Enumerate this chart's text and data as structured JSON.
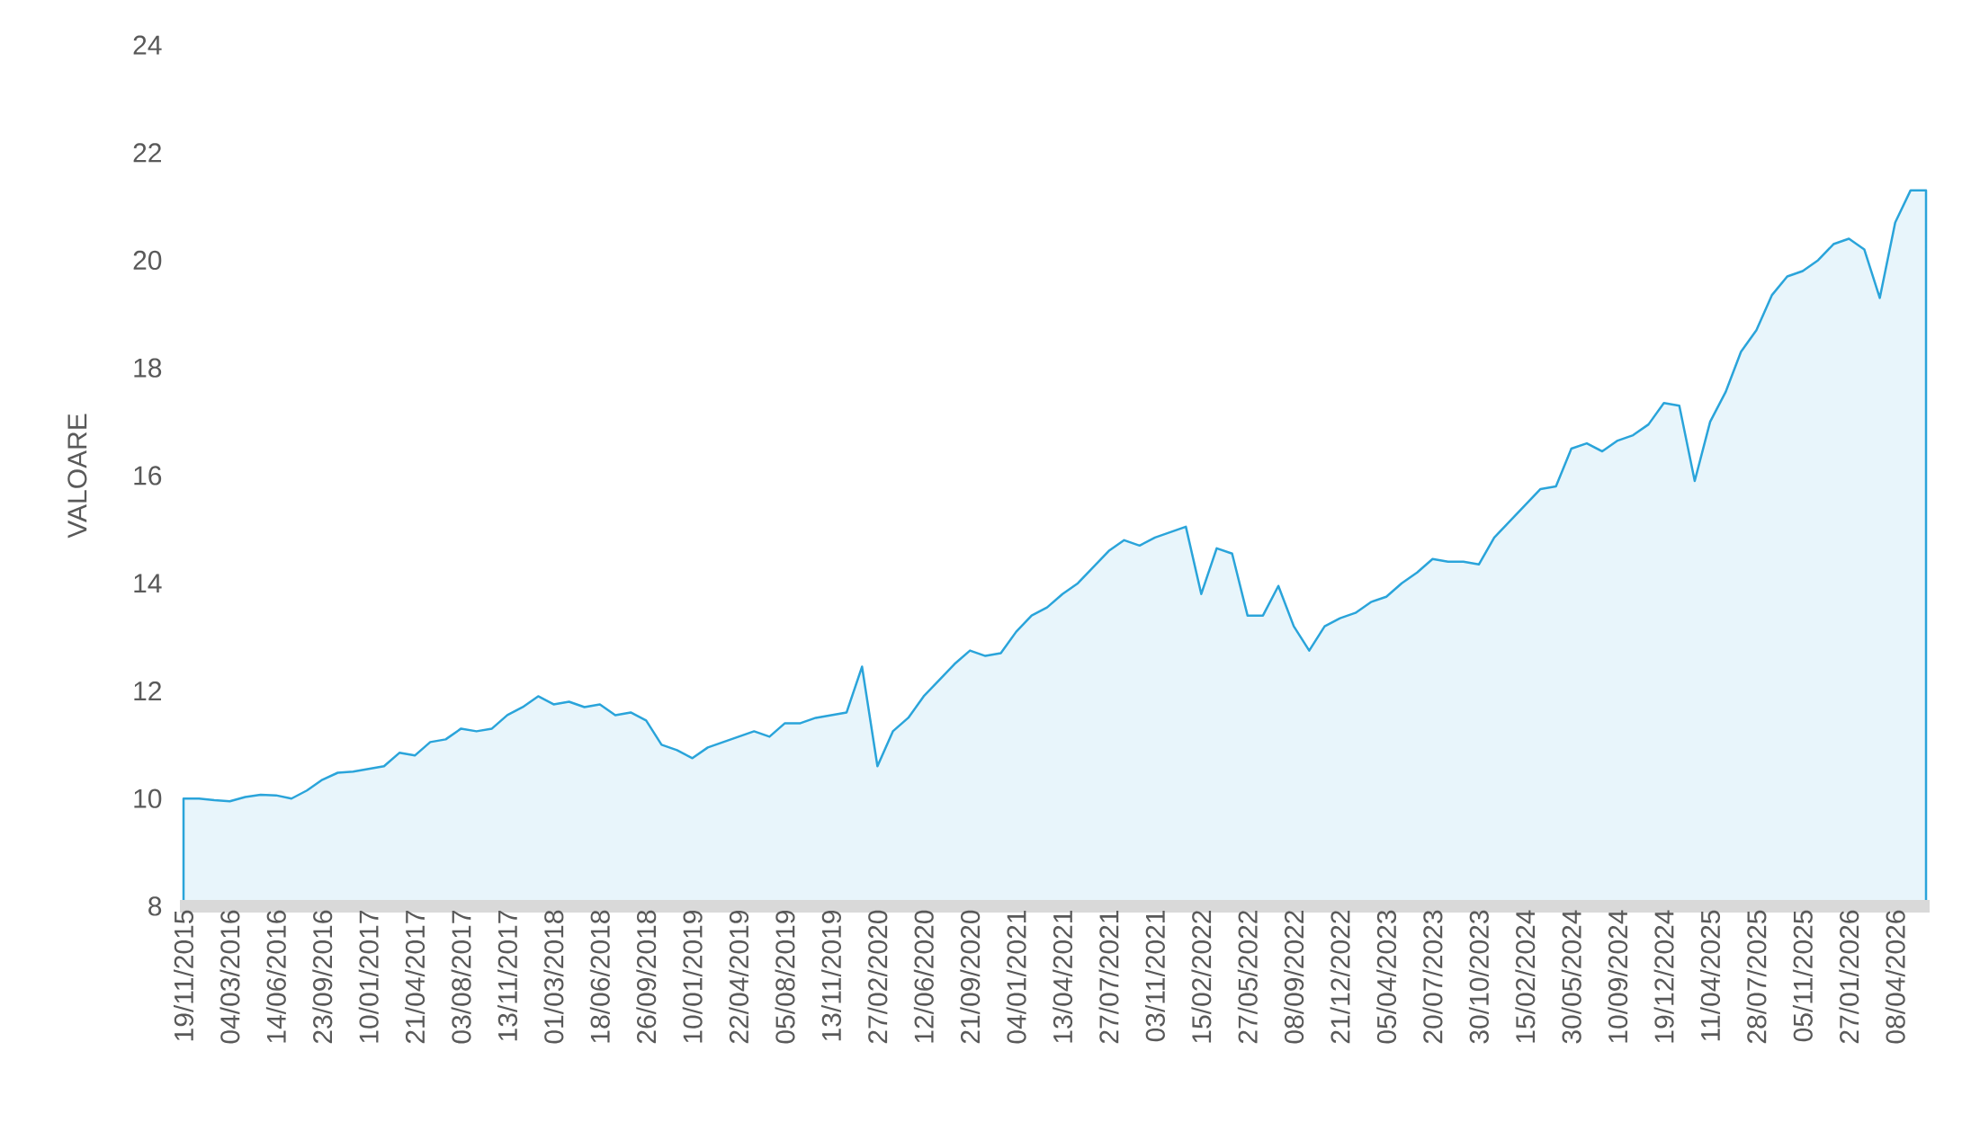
{
  "chart_data": {
    "type": "area",
    "ylabel": "VALOARE",
    "categories": [
      "19/11/2015",
      null,
      null,
      "04/03/2016",
      null,
      null,
      "14/06/2016",
      null,
      null,
      "23/09/2016",
      null,
      null,
      "10/01/2017",
      null,
      null,
      "21/04/2017",
      null,
      null,
      "03/08/2017",
      null,
      null,
      "13/11/2017",
      null,
      null,
      "01/03/2018",
      null,
      null,
      "18/06/2018",
      null,
      null,
      "26/09/2018",
      null,
      null,
      "10/01/2019",
      null,
      null,
      "22/04/2019",
      null,
      null,
      "05/08/2019",
      null,
      null,
      "13/11/2019",
      null,
      null,
      "27/02/2020",
      null,
      null,
      "12/06/2020",
      null,
      null,
      "21/09/2020",
      null,
      null,
      "04/01/2021",
      null,
      null,
      "13/04/2021",
      null,
      null,
      "27/07/2021",
      null,
      null,
      "03/11/2021",
      null,
      null,
      "15/02/2022",
      null,
      null,
      "27/05/2022",
      null,
      null,
      "08/09/2022",
      null,
      null,
      "21/12/2022",
      null,
      null,
      "05/04/2023",
      null,
      null,
      "20/07/2023",
      null,
      null,
      "30/10/2023",
      null,
      null,
      "15/02/2024",
      null,
      null,
      "30/05/2024",
      null,
      null,
      "10/09/2024",
      null,
      null,
      "19/12/2024",
      null,
      null,
      "11/04/2025",
      null,
      null,
      "28/07/2025",
      null,
      null,
      "05/11/2025",
      null,
      null,
      "27/01/2026",
      null,
      null,
      "08/04/2026",
      null,
      null
    ],
    "series": [
      {
        "color": "#2aa4da",
        "values": [
          10.0,
          10.0,
          9.97,
          9.95,
          10.03,
          10.07,
          10.06,
          10.0,
          10.15,
          10.35,
          10.48,
          10.5,
          10.55,
          10.6,
          10.85,
          10.8,
          11.05,
          11.1,
          11.3,
          11.25,
          11.3,
          11.55,
          11.7,
          11.9,
          11.75,
          11.8,
          11.7,
          11.75,
          11.55,
          11.6,
          11.45,
          11.0,
          10.9,
          10.75,
          10.95,
          11.05,
          11.15,
          11.25,
          11.15,
          11.4,
          11.4,
          11.5,
          11.55,
          11.6,
          12.45,
          10.6,
          11.25,
          11.5,
          11.9,
          12.2,
          12.5,
          12.75,
          12.65,
          12.7,
          13.1,
          13.4,
          13.55,
          13.8,
          14.0,
          14.3,
          14.6,
          14.8,
          14.7,
          14.85,
          14.95,
          15.05,
          13.8,
          14.65,
          14.55,
          13.4,
          13.4,
          13.95,
          13.2,
          12.75,
          13.2,
          13.35,
          13.45,
          13.65,
          13.75,
          14.0,
          14.2,
          14.45,
          14.4,
          14.4,
          14.35,
          14.85,
          15.15,
          15.45,
          15.75,
          15.8,
          16.5,
          16.6,
          16.45,
          16.65,
          16.75,
          16.95,
          17.35,
          17.3,
          15.9,
          17.0,
          17.55,
          18.3,
          18.7,
          19.35,
          19.7,
          19.8,
          20.0,
          20.3,
          20.4,
          20.2,
          19.3,
          20.7,
          21.3,
          21.3
        ]
      }
    ],
    "ylim": [
      8,
      24
    ],
    "yticks": [
      8,
      10,
      12,
      14,
      16,
      18,
      20,
      22,
      24
    ],
    "grid": false
  }
}
